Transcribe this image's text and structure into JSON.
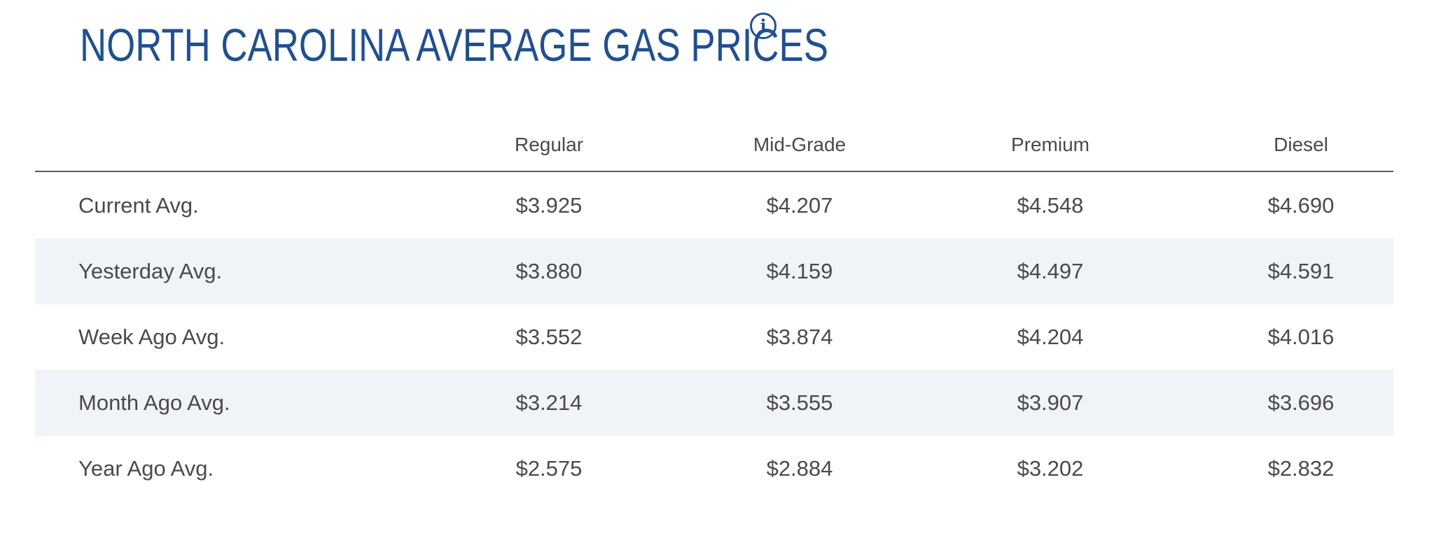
{
  "title": "NORTH CAROLINA AVERAGE GAS PRICES",
  "info_icon": "info-icon",
  "colors": {
    "title": "#21508f",
    "text": "#4a4a4a",
    "row_shade": "#f0f3f7",
    "divider": "#5a5a5a"
  },
  "table": {
    "columns": [
      "Regular",
      "Mid-Grade",
      "Premium",
      "Diesel"
    ],
    "rows": [
      {
        "label": "Current Avg.",
        "values": [
          "$3.925",
          "$4.207",
          "$4.548",
          "$4.690"
        ]
      },
      {
        "label": "Yesterday Avg.",
        "values": [
          "$3.880",
          "$4.159",
          "$4.497",
          "$4.591"
        ]
      },
      {
        "label": "Week Ago Avg.",
        "values": [
          "$3.552",
          "$3.874",
          "$4.204",
          "$4.016"
        ]
      },
      {
        "label": "Month Ago Avg.",
        "values": [
          "$3.214",
          "$3.555",
          "$3.907",
          "$3.696"
        ]
      },
      {
        "label": "Year Ago Avg.",
        "values": [
          "$2.575",
          "$2.884",
          "$3.202",
          "$2.832"
        ]
      }
    ]
  }
}
